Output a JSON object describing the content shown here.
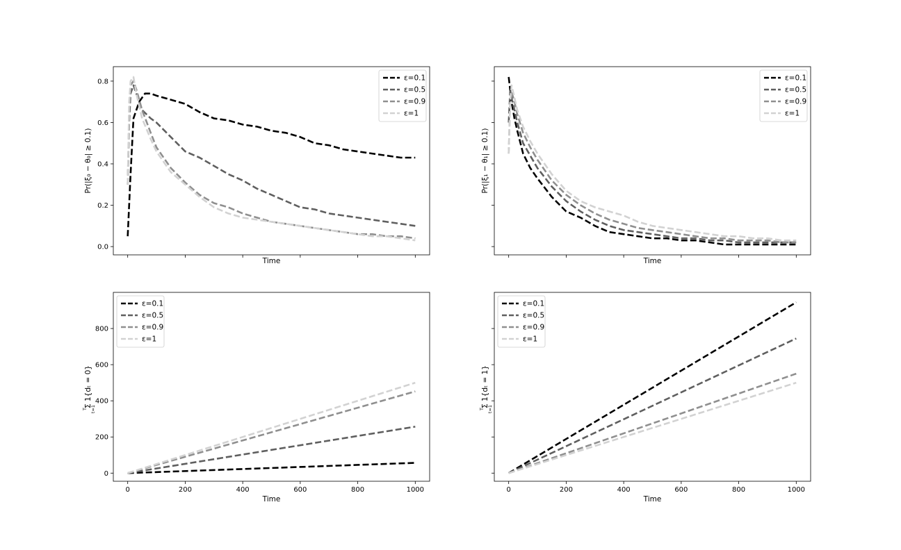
{
  "figure": {
    "width": 1296,
    "height": 792
  },
  "style": {
    "series_colors": [
      "#000000",
      "#5f5f5f",
      "#8f8f8f",
      "#d2d2d2"
    ],
    "legend_border": "#cccccc"
  },
  "chart_data": [
    {
      "id": "top-left",
      "type": "line",
      "xlabel": "Time",
      "ylabel": "Pr(|ξ₀ − θ₀| ≥ 0.1)",
      "xlim": [
        -50,
        1050
      ],
      "ylim": [
        -0.04,
        0.87
      ],
      "xticks": [
        0,
        200,
        400,
        600,
        800,
        1000
      ],
      "yticks": [
        0.0,
        0.2,
        0.4,
        0.6,
        0.8
      ],
      "ytick_labels": [
        "0.0",
        "0.2",
        "0.4",
        "0.6",
        "0.8"
      ],
      "show_xtick_labels": false,
      "show_ytick_labels": true,
      "legend_loc": "upper right",
      "series": [
        {
          "name": "ε=0.1",
          "x": [
            0,
            10,
            20,
            40,
            60,
            80,
            100,
            150,
            200,
            250,
            300,
            350,
            400,
            450,
            500,
            550,
            600,
            650,
            700,
            750,
            800,
            850,
            900,
            950,
            1000
          ],
          "y": [
            0.05,
            0.35,
            0.62,
            0.7,
            0.74,
            0.74,
            0.73,
            0.71,
            0.69,
            0.65,
            0.62,
            0.61,
            0.59,
            0.58,
            0.56,
            0.55,
            0.53,
            0.5,
            0.49,
            0.47,
            0.46,
            0.45,
            0.44,
            0.43,
            0.43
          ]
        },
        {
          "name": "ε=0.5",
          "x": [
            0,
            5,
            10,
            20,
            30,
            50,
            80,
            100,
            150,
            200,
            250,
            300,
            350,
            400,
            450,
            500,
            550,
            600,
            650,
            700,
            750,
            800,
            850,
            900,
            950,
            1000
          ],
          "y": [
            0.3,
            0.6,
            0.74,
            0.78,
            0.74,
            0.66,
            0.62,
            0.6,
            0.53,
            0.46,
            0.43,
            0.39,
            0.35,
            0.32,
            0.28,
            0.25,
            0.22,
            0.19,
            0.18,
            0.16,
            0.15,
            0.14,
            0.13,
            0.12,
            0.11,
            0.1
          ]
        },
        {
          "name": "ε=0.9",
          "x": [
            0,
            5,
            10,
            20,
            30,
            50,
            80,
            100,
            150,
            200,
            250,
            300,
            350,
            400,
            450,
            500,
            550,
            600,
            650,
            700,
            750,
            800,
            850,
            900,
            950,
            1000
          ],
          "y": [
            0.3,
            0.65,
            0.78,
            0.8,
            0.76,
            0.66,
            0.55,
            0.48,
            0.38,
            0.31,
            0.25,
            0.21,
            0.19,
            0.16,
            0.14,
            0.12,
            0.11,
            0.1,
            0.09,
            0.08,
            0.07,
            0.06,
            0.06,
            0.05,
            0.05,
            0.04
          ]
        },
        {
          "name": "ε=1",
          "x": [
            0,
            5,
            10,
            20,
            30,
            50,
            80,
            100,
            150,
            200,
            250,
            300,
            350,
            400,
            450,
            500,
            550,
            600,
            650,
            700,
            750,
            800,
            850,
            900,
            950,
            1000
          ],
          "y": [
            0.3,
            0.7,
            0.8,
            0.82,
            0.74,
            0.62,
            0.52,
            0.46,
            0.36,
            0.3,
            0.24,
            0.19,
            0.16,
            0.14,
            0.13,
            0.12,
            0.11,
            0.1,
            0.09,
            0.08,
            0.07,
            0.06,
            0.05,
            0.05,
            0.04,
            0.03
          ]
        }
      ]
    },
    {
      "id": "top-right",
      "type": "line",
      "xlabel": "Time",
      "ylabel": "Pr(|ξ₁ − θ₁| ≥ 0.1)",
      "xlim": [
        -50,
        1050
      ],
      "ylim": [
        -0.04,
        0.87
      ],
      "xticks": [
        0,
        200,
        400,
        600,
        800,
        1000
      ],
      "yticks": [
        0.0,
        0.2,
        0.4,
        0.6,
        0.8
      ],
      "ytick_labels": [],
      "show_xtick_labels": false,
      "show_ytick_labels": false,
      "legend_loc": "upper right",
      "series": [
        {
          "name": "ε=0.1",
          "x": [
            0,
            5,
            10,
            20,
            30,
            50,
            75,
            100,
            150,
            200,
            250,
            300,
            350,
            400,
            450,
            500,
            550,
            600,
            650,
            700,
            750,
            800,
            850,
            900,
            950,
            1000
          ],
          "y": [
            0.82,
            0.76,
            0.7,
            0.62,
            0.56,
            0.45,
            0.38,
            0.33,
            0.24,
            0.17,
            0.14,
            0.1,
            0.07,
            0.06,
            0.05,
            0.04,
            0.04,
            0.03,
            0.03,
            0.02,
            0.01,
            0.01,
            0.01,
            0.01,
            0.01,
            0.01
          ]
        },
        {
          "name": "ε=0.5",
          "x": [
            0,
            5,
            10,
            20,
            30,
            50,
            75,
            100,
            150,
            200,
            250,
            300,
            350,
            400,
            450,
            500,
            550,
            600,
            650,
            700,
            750,
            800,
            850,
            900,
            950,
            1000
          ],
          "y": [
            0.6,
            0.75,
            0.72,
            0.66,
            0.6,
            0.5,
            0.44,
            0.38,
            0.29,
            0.22,
            0.17,
            0.13,
            0.1,
            0.08,
            0.07,
            0.06,
            0.05,
            0.04,
            0.04,
            0.03,
            0.03,
            0.02,
            0.02,
            0.02,
            0.02,
            0.02
          ]
        },
        {
          "name": "ε=0.9",
          "x": [
            0,
            5,
            10,
            20,
            30,
            50,
            75,
            100,
            150,
            200,
            250,
            300,
            350,
            400,
            450,
            500,
            550,
            600,
            650,
            700,
            750,
            800,
            850,
            900,
            950,
            1000
          ],
          "y": [
            0.45,
            0.7,
            0.75,
            0.7,
            0.64,
            0.55,
            0.48,
            0.42,
            0.32,
            0.25,
            0.2,
            0.16,
            0.13,
            0.11,
            0.09,
            0.08,
            0.07,
            0.06,
            0.05,
            0.04,
            0.04,
            0.03,
            0.03,
            0.03,
            0.02,
            0.02
          ]
        },
        {
          "name": "ε=1",
          "x": [
            0,
            5,
            10,
            20,
            30,
            50,
            75,
            100,
            150,
            200,
            250,
            300,
            350,
            400,
            450,
            500,
            550,
            600,
            650,
            700,
            750,
            800,
            850,
            900,
            950,
            1000
          ],
          "y": [
            0.45,
            0.7,
            0.78,
            0.72,
            0.66,
            0.58,
            0.51,
            0.45,
            0.35,
            0.27,
            0.22,
            0.19,
            0.17,
            0.15,
            0.12,
            0.1,
            0.09,
            0.08,
            0.07,
            0.06,
            0.05,
            0.05,
            0.04,
            0.04,
            0.03,
            0.03
          ]
        }
      ]
    },
    {
      "id": "bottom-left",
      "type": "line",
      "xlabel": "Time",
      "ylabel": "Σ 1{dₜ = 0}",
      "ylabel_limits": [
        "T",
        "t=1"
      ],
      "xlim": [
        -50,
        1050
      ],
      "ylim": [
        -45,
        1000
      ],
      "xticks": [
        0,
        200,
        400,
        600,
        800,
        1000
      ],
      "xtick_labels": [
        "0",
        "200",
        "400",
        "600",
        "800",
        "1000"
      ],
      "yticks": [
        0,
        200,
        400,
        600,
        800
      ],
      "ytick_labels": [
        "0",
        "200",
        "400",
        "600",
        "800"
      ],
      "show_xtick_labels": true,
      "show_ytick_labels": true,
      "legend_loc": "upper left",
      "series": [
        {
          "name": "ε=0.1",
          "x": [
            0,
            1000
          ],
          "y": [
            0,
            57
          ]
        },
        {
          "name": "ε=0.5",
          "x": [
            0,
            1000
          ],
          "y": [
            0,
            257
          ]
        },
        {
          "name": "ε=0.9",
          "x": [
            0,
            1000
          ],
          "y": [
            0,
            452
          ]
        },
        {
          "name": "ε=1",
          "x": [
            0,
            1000
          ],
          "y": [
            0,
            500
          ]
        }
      ]
    },
    {
      "id": "bottom-right",
      "type": "line",
      "xlabel": "Time",
      "ylabel": "Σ 1{dₜ = 1}",
      "ylabel_limits": [
        "T",
        "t=1"
      ],
      "xlim": [
        -50,
        1050
      ],
      "ylim": [
        -45,
        1000
      ],
      "xticks": [
        0,
        200,
        400,
        600,
        800,
        1000
      ],
      "xtick_labels": [
        "0",
        "200",
        "400",
        "600",
        "800",
        "1000"
      ],
      "yticks": [
        0,
        200,
        400,
        600,
        800
      ],
      "ytick_labels": [],
      "show_xtick_labels": true,
      "show_ytick_labels": false,
      "legend_loc": "upper left",
      "series": [
        {
          "name": "ε=0.1",
          "x": [
            0,
            1000
          ],
          "y": [
            0,
            945
          ]
        },
        {
          "name": "ε=0.5",
          "x": [
            0,
            1000
          ],
          "y": [
            0,
            745
          ]
        },
        {
          "name": "ε=0.9",
          "x": [
            0,
            1000
          ],
          "y": [
            0,
            550
          ]
        },
        {
          "name": "ε=1",
          "x": [
            0,
            1000
          ],
          "y": [
            0,
            500
          ]
        }
      ]
    }
  ]
}
